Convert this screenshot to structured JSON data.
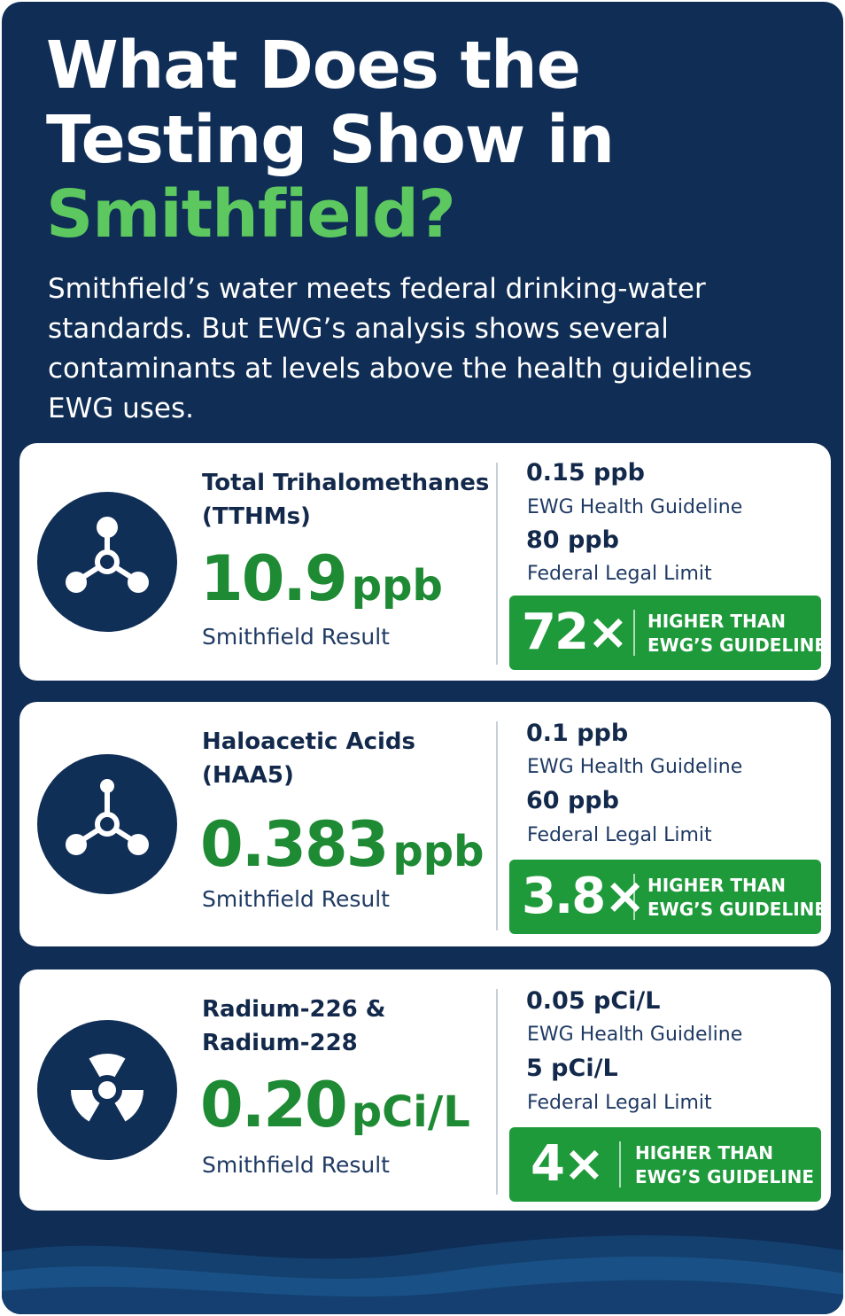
{
  "title": {
    "line1": "What Does the",
    "line2": "Testing Show in",
    "accent": "Smithfield?"
  },
  "intro": "Smithfield’s water meets federal drinking-water standards. But EWG’s analysis shows several contaminants at levels above the health guidelines EWG uses.",
  "colors": {
    "background": "#0f2d55",
    "accent_green": "#5cc85f",
    "result_green": "#1e8a34",
    "badge_green": "#1e9a3b",
    "card": "#ffffff",
    "text_dark": "#13294b"
  },
  "contaminants": [
    {
      "icon": "molecule-icon",
      "name": "Total Trihalomethanes (TTHMs)",
      "result_value": "10.9",
      "result_unit": "ppb",
      "result_label": "Smithfield Result",
      "guideline_value": "0.15 ppb",
      "guideline_label": "EWG Health Guideline",
      "limit_value": "80 ppb",
      "limit_label": "Federal Legal Limit",
      "multiplier": "72×",
      "badge_line1": "HIGHER THAN",
      "badge_line2": "EWG’S GUIDELINE"
    },
    {
      "icon": "molecule-icon",
      "name": "Haloacetic Acids (HAA5)",
      "result_value": "0.383",
      "result_unit": "ppb",
      "result_label": "Smithfield Result",
      "guideline_value": "0.1 ppb",
      "guideline_label": "EWG Health Guideline",
      "limit_value": "60 ppb",
      "limit_label": "Federal Legal Limit",
      "multiplier": "3.8×",
      "badge_line1": "HIGHER THAN",
      "badge_line2": "EWG’S GUIDELINE"
    },
    {
      "icon": "radiation-icon",
      "name": "Radium-226 & Radium-228",
      "result_value": "0.20",
      "result_unit": "pCi/L",
      "result_label": "Smithfield Result",
      "guideline_value": "0.05 pCi/L",
      "guideline_label": "EWG Health Guideline",
      "limit_value": "5 pCi/L",
      "limit_label": "Federal Legal Limit",
      "multiplier": "4×",
      "badge_line1": "HIGHER THAN",
      "badge_line2": "EWG’S GUIDELINE"
    }
  ]
}
